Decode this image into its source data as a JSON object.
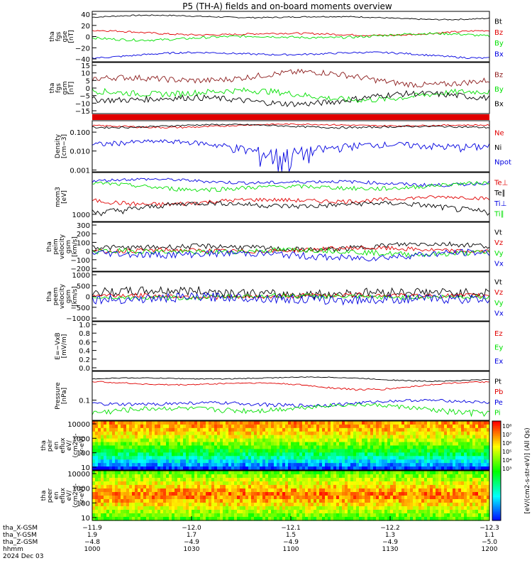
{
  "title": "P5 (TH-A) fields and on-board moments overview",
  "colors": {
    "black": "#000000",
    "red": "#e00000",
    "green": "#00e000",
    "blue": "#0000e0",
    "darkred": "#8b1a1a"
  },
  "chart_data": [
    {
      "id": "fgs_gse",
      "type": "line",
      "ylabel": [
        "tha",
        "fgs",
        "gse",
        "[nT]"
      ],
      "yticks": [
        "40",
        "20",
        "0",
        "−20",
        "−40"
      ],
      "yrange": [
        -40,
        45
      ],
      "series": [
        {
          "name": "Bt",
          "color": "#000000",
          "level": 35,
          "amp": 4,
          "noise": 1
        },
        {
          "name": "Bz",
          "color": "#e00000",
          "level": 8,
          "amp": 5,
          "noise": 1.5
        },
        {
          "name": "By",
          "color": "#00e000",
          "level": 2,
          "amp": 6,
          "noise": 2
        },
        {
          "name": "Bx",
          "color": "#0000e0",
          "level": -28,
          "amp": 6,
          "noise": 1.5
        }
      ]
    },
    {
      "id": "fgs_gsm",
      "type": "line",
      "ylabel": [
        "tha",
        "fgs",
        "gsm",
        "[nT]"
      ],
      "yticks": [
        "15",
        "10",
        "5",
        "0",
        "−5",
        "−10",
        "−15"
      ],
      "yrange": [
        -18,
        16
      ],
      "series": [
        {
          "name": "Bz",
          "color": "#8b1a1a",
          "level": 5,
          "amp": 5,
          "noise": 2
        },
        {
          "name": "By",
          "color": "#00e000",
          "level": -5,
          "amp": 4,
          "noise": 2
        },
        {
          "name": "Bx",
          "color": "#000000",
          "level": -8,
          "amp": 4,
          "noise": 2
        }
      ]
    },
    {
      "id": "density",
      "type": "line",
      "scale": "log",
      "ylabel": [
        "Density",
        "[cm−3]"
      ],
      "yticks": [
        "0.100",
        "0.010",
        "0.001"
      ],
      "yrange": [
        0.0008,
        0.4
      ],
      "series": [
        {
          "name": "Ne",
          "color": "#e00000",
          "level": 0.22,
          "amp": 0.05,
          "noise": 0.02
        },
        {
          "name": "Ni",
          "color": "#000000",
          "level": 0.2,
          "amp": 0.05,
          "noise": 0.02
        },
        {
          "name": "Npot",
          "color": "#0000e0",
          "level": 0.02,
          "amp": 0.015,
          "noise": 0.008
        }
      ]
    },
    {
      "id": "moments_t",
      "type": "line",
      "scale": "log",
      "ylabel": [
        "mom3",
        "[eV]"
      ],
      "yticks": [
        "1000"
      ],
      "yrange": [
        700,
        8000
      ],
      "series": [
        {
          "name": "Te⊥",
          "color": "#e00000",
          "level": 2000,
          "amp": 400,
          "noise": 200
        },
        {
          "name": "Te∥",
          "color": "#000000",
          "level": 1500,
          "amp": 400,
          "noise": 200
        },
        {
          "name": "Ti⊥",
          "color": "#0000e0",
          "level": 5000,
          "amp": 800,
          "noise": 400
        },
        {
          "name": "Ti∥",
          "color": "#00e000",
          "level": 4000,
          "amp": 800,
          "noise": 400
        }
      ]
    },
    {
      "id": "peim_velocity",
      "type": "line",
      "ylabel": [
        "tha",
        "peim",
        "velocity",
        "gsm",
        "[km/s]"
      ],
      "yticks": [
        "300",
        "200",
        "100",
        "0",
        "−100",
        "−200"
      ],
      "yrange": [
        -220,
        340
      ],
      "series": [
        {
          "name": "Vt",
          "color": "#000000",
          "level": 60,
          "amp": 40,
          "noise": 30
        },
        {
          "name": "Vz",
          "color": "#e00000",
          "level": 20,
          "amp": 25,
          "noise": 25
        },
        {
          "name": "Vy",
          "color": "#00e000",
          "level": 0,
          "amp": 30,
          "noise": 30
        },
        {
          "name": "Vx",
          "color": "#0000e0",
          "level": -30,
          "amp": 40,
          "noise": 40
        }
      ]
    },
    {
      "id": "peem_velocity",
      "type": "line",
      "ylabel": [
        "tha",
        "peem",
        "velocity",
        "gsm",
        "[km/s]"
      ],
      "yticks": [
        "1000",
        "500",
        "0",
        "−500",
        "−1000"
      ],
      "yrange": [
        -1050,
        1100
      ],
      "series": [
        {
          "name": "Vt",
          "color": "#000000",
          "level": 200,
          "amp": 100,
          "noise": 200
        },
        {
          "name": "Vz",
          "color": "#e00000",
          "level": 50,
          "amp": 60,
          "noise": 100
        },
        {
          "name": "Vy",
          "color": "#00e000",
          "level": 0,
          "amp": 60,
          "noise": 100
        },
        {
          "name": "Vx",
          "color": "#0000e0",
          "level": -80,
          "amp": 80,
          "noise": 200
        }
      ]
    },
    {
      "id": "efield",
      "type": "line",
      "ylabel": [
        "E=−VxB",
        "[mV/m]"
      ],
      "yticks": [
        "1.0",
        "0.8",
        "0.6",
        "0.4",
        "0.2",
        "0.0"
      ],
      "yrange": [
        0,
        1
      ],
      "series": [
        {
          "name": "Ez",
          "color": "#e00000"
        },
        {
          "name": "Ey",
          "color": "#00e000"
        },
        {
          "name": "Ex",
          "color": "#0000e0"
        }
      ]
    },
    {
      "id": "pressure",
      "type": "line",
      "scale": "log",
      "ylabel": [
        "Pressure",
        "[nPa]"
      ],
      "yticks": [
        "0.1"
      ],
      "yrange": [
        0.02,
        1
      ],
      "series": [
        {
          "name": "Pt",
          "color": "#000000",
          "level": 0.55,
          "amp": 0.1,
          "noise": 0.02
        },
        {
          "name": "Pb",
          "color": "#e00000",
          "level": 0.35,
          "amp": 0.12,
          "noise": 0.02
        },
        {
          "name": "Pe",
          "color": "#0000e0",
          "level": 0.08,
          "amp": 0.02,
          "noise": 0.01
        },
        {
          "name": "Pi",
          "color": "#00e000",
          "level": 0.05,
          "amp": 0.02,
          "noise": 0.01
        }
      ]
    },
    {
      "id": "peir_eflux",
      "type": "heatmap",
      "ylabel": [
        "tha",
        "peir",
        "en",
        "eflux",
        "eV/",
        "(cm2-s-",
        "sr-eV)"
      ],
      "yticks": [
        "10000",
        "1000",
        "100",
        "10"
      ],
      "yrange": [
        5,
        20000
      ]
    },
    {
      "id": "peer_eflux",
      "type": "heatmap",
      "ylabel": [
        "tha",
        "peer",
        "en",
        "eflux",
        "eV/",
        "(cm2-s-",
        "sr-eV)"
      ],
      "yticks": [
        "10000",
        "1000",
        "100",
        "10"
      ],
      "yrange": [
        5,
        20000
      ]
    }
  ],
  "colorbar": {
    "ticks": [
      "10⁸",
      "10⁷",
      "10⁶",
      "10⁵",
      "10⁴",
      "10³"
    ],
    "label": "[eV/(cm2-s-str-eV)] (All Qs)"
  },
  "xaxis": {
    "rows": [
      {
        "label": "tha_X-GSM",
        "values": [
          "−11.9",
          "−12.0",
          "−12.1",
          "−12.2",
          "−12.3"
        ]
      },
      {
        "label": "tha_Y-GSM",
        "values": [
          "1.9",
          "1.7",
          "1.5",
          "1.3",
          "1.1"
        ]
      },
      {
        "label": "tha_Z-GSM",
        "values": [
          "−4.8",
          "−4.9",
          "−4.9",
          "−4.9",
          "−5.0"
        ]
      },
      {
        "label": "hhmm",
        "values": [
          "1000",
          "1030",
          "1100",
          "1130",
          "1200"
        ]
      }
    ],
    "date": "2024 Dec 03"
  }
}
